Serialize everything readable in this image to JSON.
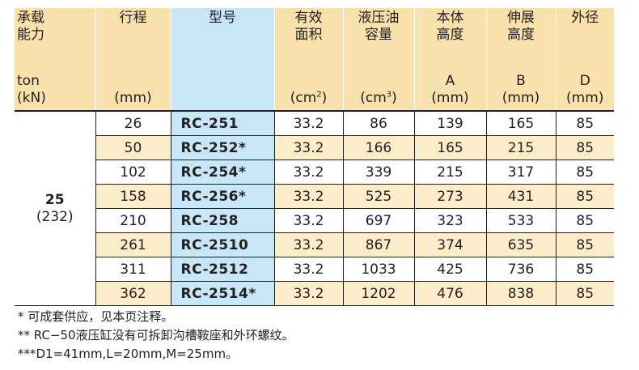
{
  "headers": {
    "capacity": {
      "line1": "承载",
      "line2": "能力",
      "unit1": "ton",
      "unit2": "(kN)"
    },
    "stroke": {
      "label": "行程",
      "unit": "(mm)"
    },
    "model": {
      "label": "型号"
    },
    "area": {
      "line1": "有效",
      "line2": "面积",
      "unit_pre": "(cm",
      "unit_sup": "2",
      "unit_post": ")"
    },
    "oil": {
      "line1": "液压油",
      "line2": "容量",
      "unit_pre": "(cm",
      "unit_sup": "3",
      "unit_post": ")"
    },
    "body_height": {
      "line1": "本体",
      "line2": "高度",
      "letter": "A",
      "unit": "(mm)"
    },
    "ext_height": {
      "line1": "伸展",
      "line2": "高度",
      "letter": "B",
      "unit": "(mm)"
    },
    "outer_dia": {
      "line1": "外径",
      "letter": "D",
      "unit": "(mm)"
    }
  },
  "capacity": {
    "ton": "25",
    "kn": "(232)"
  },
  "rows": [
    {
      "stroke": "26",
      "model": "RC-251",
      "area": "33.2",
      "oil": "86",
      "a": "139",
      "b": "165",
      "d": "85"
    },
    {
      "stroke": "50",
      "model": "RC-252*",
      "area": "33.2",
      "oil": "166",
      "a": "165",
      "b": "215",
      "d": "85"
    },
    {
      "stroke": "102",
      "model": "RC-254*",
      "area": "33.2",
      "oil": "339",
      "a": "215",
      "b": "317",
      "d": "85"
    },
    {
      "stroke": "158",
      "model": "RC-256*",
      "area": "33.2",
      "oil": "525",
      "a": "273",
      "b": "431",
      "d": "85"
    },
    {
      "stroke": "210",
      "model": "RC-258",
      "area": "33.2",
      "oil": "697",
      "a": "323",
      "b": "533",
      "d": "85"
    },
    {
      "stroke": "261",
      "model": "RC-2510",
      "area": "33.2",
      "oil": "867",
      "a": "374",
      "b": "635",
      "d": "85"
    },
    {
      "stroke": "311",
      "model": "RC-2512",
      "area": "33.2",
      "oil": "1033",
      "a": "425",
      "b": "736",
      "d": "85"
    },
    {
      "stroke": "362",
      "model": "RC-2514*",
      "area": "33.2",
      "oil": "1202",
      "a": "476",
      "b": "838",
      "d": "85"
    }
  ],
  "notes": [
    "*  可成套供应，见本页注释。",
    "** RC−50液压缸没有可拆卸沟槽鞍座和外环螺纹。",
    "***D1=41mm,L=20mm,M=25mm。"
  ],
  "colors": {
    "header_bg": "#f8e1ac",
    "model_bg": "#c9e6f6",
    "alt_row_bg": "#fbecca",
    "rule": "#231f20"
  }
}
